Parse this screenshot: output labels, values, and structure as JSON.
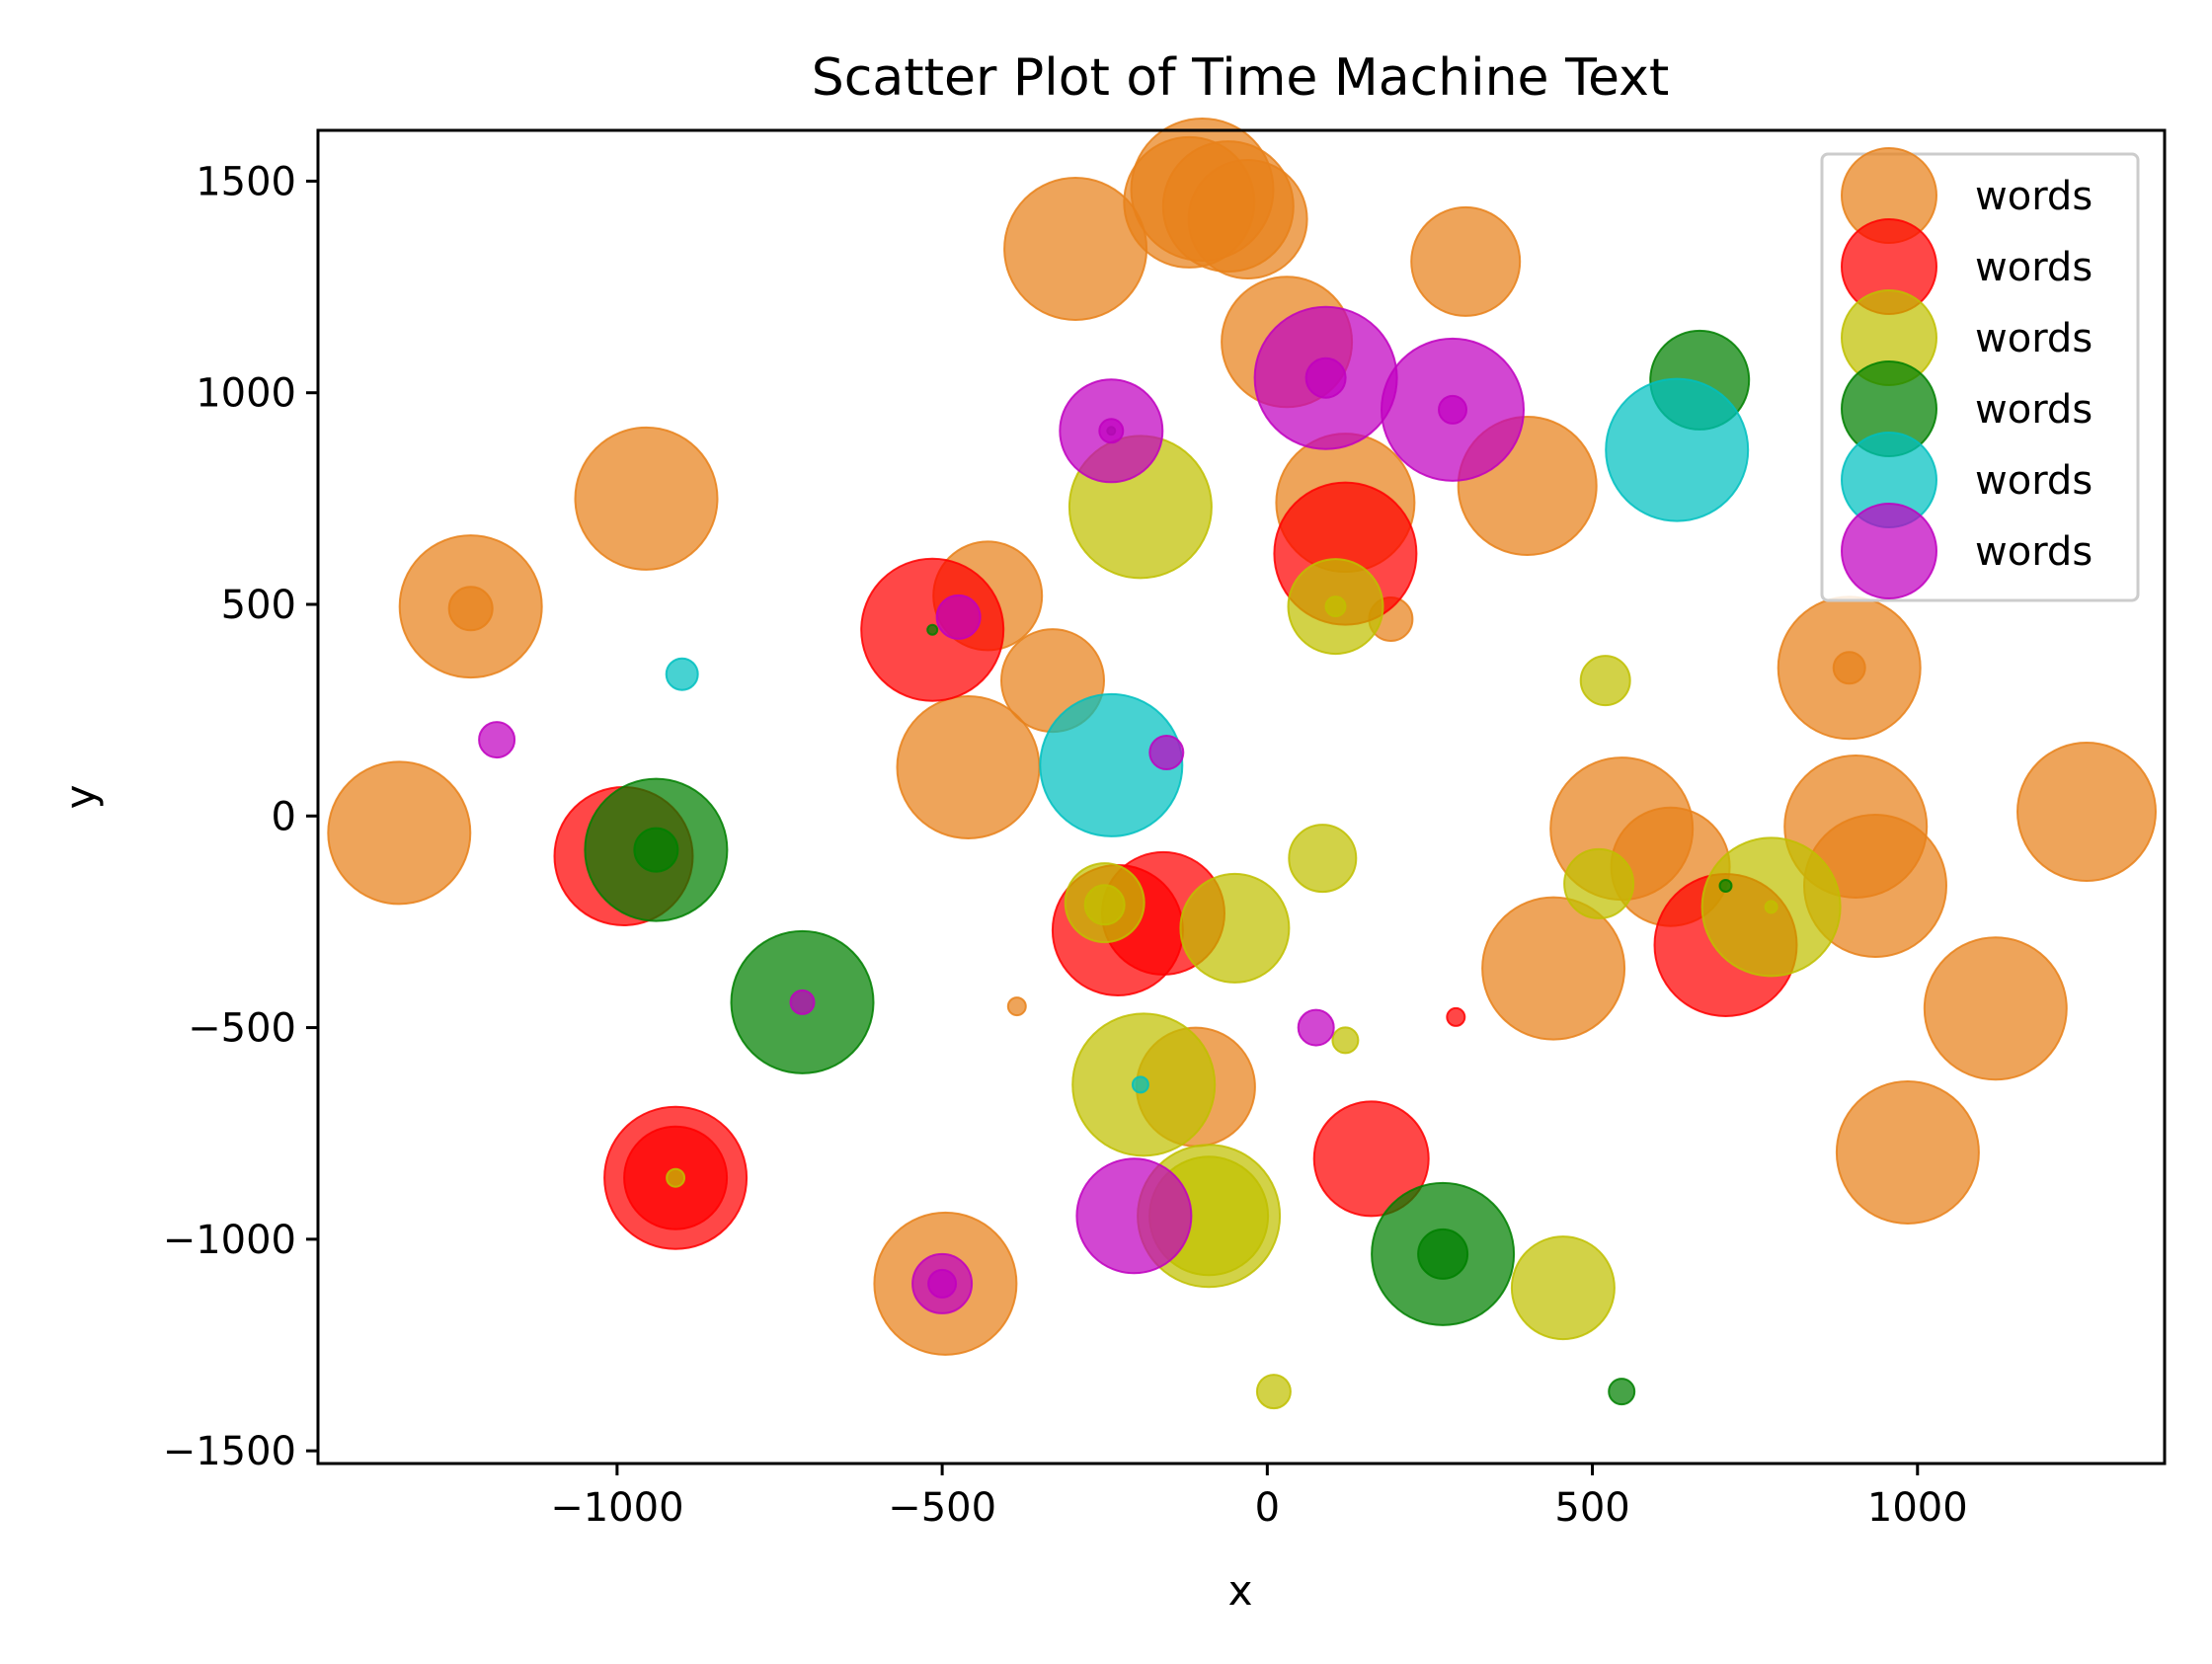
{
  "chart_data": {
    "type": "scatter",
    "title": "Scatter Plot of Time Machine Text",
    "xlabel": "x",
    "ylabel": "y",
    "xlim": [
      -1460,
      1380
    ],
    "ylim": [
      -1530,
      1620
    ],
    "x_ticks": [
      -1000,
      -500,
      0,
      500,
      1000
    ],
    "y_ticks": [
      -1500,
      -1000,
      -500,
      0,
      500,
      1000,
      1500
    ],
    "x_tick_labels": [
      "−1000",
      "−500",
      "0",
      "500",
      "1000"
    ],
    "y_tick_labels": [
      "−1500",
      "−1000",
      "−500",
      "0",
      "500",
      "1000",
      "1500"
    ],
    "grid": false,
    "legend_position": "top-right",
    "series": [
      {
        "name": "words",
        "color": "#e8811a",
        "points": [
          {
            "x": -100,
            "y": 1480,
            "s": 72
          },
          {
            "x": -30,
            "y": 1410,
            "s": 60
          },
          {
            "x": -60,
            "y": 1440,
            "s": 66
          },
          {
            "x": -295,
            "y": 1340,
            "s": 72
          },
          {
            "x": -120,
            "y": 1450,
            "s": 66
          },
          {
            "x": 305,
            "y": 1310,
            "s": 55
          },
          {
            "x": 30,
            "y": 1120,
            "s": 66
          },
          {
            "x": -955,
            "y": 750,
            "s": 72
          },
          {
            "x": 400,
            "y": 780,
            "s": 70
          },
          {
            "x": 120,
            "y": 740,
            "s": 70
          },
          {
            "x": -430,
            "y": 520,
            "s": 55
          },
          {
            "x": -1225,
            "y": 495,
            "s": 72
          },
          {
            "x": -1225,
            "y": 490,
            "s": 22
          },
          {
            "x": 190,
            "y": 465,
            "s": 22
          },
          {
            "x": -330,
            "y": 320,
            "s": 52
          },
          {
            "x": 895,
            "y": 350,
            "s": 72
          },
          {
            "x": 895,
            "y": 350,
            "s": 16
          },
          {
            "x": -460,
            "y": 115,
            "s": 72
          },
          {
            "x": -1335,
            "y": -40,
            "s": 72
          },
          {
            "x": 545,
            "y": -30,
            "s": 72
          },
          {
            "x": 620,
            "y": -120,
            "s": 60
          },
          {
            "x": 905,
            "y": -25,
            "s": 72
          },
          {
            "x": 935,
            "y": -165,
            "s": 72
          },
          {
            "x": 1260,
            "y": 10,
            "s": 70
          },
          {
            "x": 440,
            "y": -360,
            "s": 72
          },
          {
            "x": 1120,
            "y": -455,
            "s": 72
          },
          {
            "x": -385,
            "y": -450,
            "s": 9
          },
          {
            "x": -110,
            "y": -640,
            "s": 60
          },
          {
            "x": 985,
            "y": -795,
            "s": 72
          },
          {
            "x": -495,
            "y": -1105,
            "s": 72
          }
        ]
      },
      {
        "name": "words",
        "color": "#ff0000",
        "points": [
          {
            "x": 120,
            "y": 620,
            "s": 72
          },
          {
            "x": -515,
            "y": 440,
            "s": 72
          },
          {
            "x": -990,
            "y": -95,
            "s": 70
          },
          {
            "x": -160,
            "y": -230,
            "s": 62
          },
          {
            "x": -230,
            "y": -270,
            "s": 66
          },
          {
            "x": 705,
            "y": -305,
            "s": 72
          },
          {
            "x": 290,
            "y": -475,
            "s": 9
          },
          {
            "x": 160,
            "y": -810,
            "s": 58
          },
          {
            "x": -910,
            "y": -855,
            "s": 72
          },
          {
            "x": -910,
            "y": -855,
            "s": 52
          }
        ]
      },
      {
        "name": "words",
        "color": "#c0c000",
        "points": [
          {
            "x": -195,
            "y": 730,
            "s": 72
          },
          {
            "x": 105,
            "y": 495,
            "s": 48
          },
          {
            "x": 105,
            "y": 495,
            "s": 10
          },
          {
            "x": 520,
            "y": 320,
            "s": 25
          },
          {
            "x": 85,
            "y": -100,
            "s": 34
          },
          {
            "x": 510,
            "y": -160,
            "s": 35
          },
          {
            "x": 775,
            "y": -215,
            "s": 70
          },
          {
            "x": 775,
            "y": -215,
            "s": 6
          },
          {
            "x": -250,
            "y": -205,
            "s": 40
          },
          {
            "x": -250,
            "y": -210,
            "s": 20
          },
          {
            "x": -50,
            "y": -265,
            "s": 55
          },
          {
            "x": 120,
            "y": -530,
            "s": 13
          },
          {
            "x": -190,
            "y": -635,
            "s": 72
          },
          {
            "x": -90,
            "y": -945,
            "s": 72
          },
          {
            "x": -90,
            "y": -945,
            "s": 60
          },
          {
            "x": 455,
            "y": -1115,
            "s": 52
          },
          {
            "x": 10,
            "y": -1360,
            "s": 17
          },
          {
            "x": -910,
            "y": -855,
            "s": 9
          }
        ]
      },
      {
        "name": "words",
        "color": "#008000",
        "points": [
          {
            "x": 665,
            "y": 1030,
            "s": 50
          },
          {
            "x": -940,
            "y": -80,
            "s": 72
          },
          {
            "x": -940,
            "y": -80,
            "s": 22
          },
          {
            "x": -715,
            "y": -440,
            "s": 72
          },
          {
            "x": 270,
            "y": -1035,
            "s": 72
          },
          {
            "x": 270,
            "y": -1035,
            "s": 25
          },
          {
            "x": 545,
            "y": -1360,
            "s": 13
          },
          {
            "x": 705,
            "y": -165,
            "s": 6
          },
          {
            "x": -515,
            "y": 440,
            "s": 5
          },
          {
            "x": -240,
            "y": 910,
            "s": 4
          }
        ]
      },
      {
        "name": "words",
        "color": "#00c0c0",
        "points": [
          {
            "x": 630,
            "y": 865,
            "s": 72
          },
          {
            "x": -240,
            "y": 120,
            "s": 72
          },
          {
            "x": -900,
            "y": 335,
            "s": 16
          },
          {
            "x": -195,
            "y": -635,
            "s": 8
          }
        ]
      },
      {
        "name": "words",
        "color": "#c000c0",
        "points": [
          {
            "x": 90,
            "y": 1035,
            "s": 72
          },
          {
            "x": 90,
            "y": 1035,
            "s": 20
          },
          {
            "x": 285,
            "y": 960,
            "s": 72
          },
          {
            "x": 285,
            "y": 960,
            "s": 14
          },
          {
            "x": -240,
            "y": 910,
            "s": 52
          },
          {
            "x": -240,
            "y": 910,
            "s": 12
          },
          {
            "x": -475,
            "y": 470,
            "s": 22
          },
          {
            "x": -1185,
            "y": 180,
            "s": 18
          },
          {
            "x": -155,
            "y": 150,
            "s": 17
          },
          {
            "x": 75,
            "y": -500,
            "s": 18
          },
          {
            "x": -715,
            "y": -440,
            "s": 12
          },
          {
            "x": -205,
            "y": -945,
            "s": 58
          },
          {
            "x": -500,
            "y": -1105,
            "s": 30
          },
          {
            "x": -500,
            "y": -1105,
            "s": 14
          }
        ]
      }
    ]
  }
}
